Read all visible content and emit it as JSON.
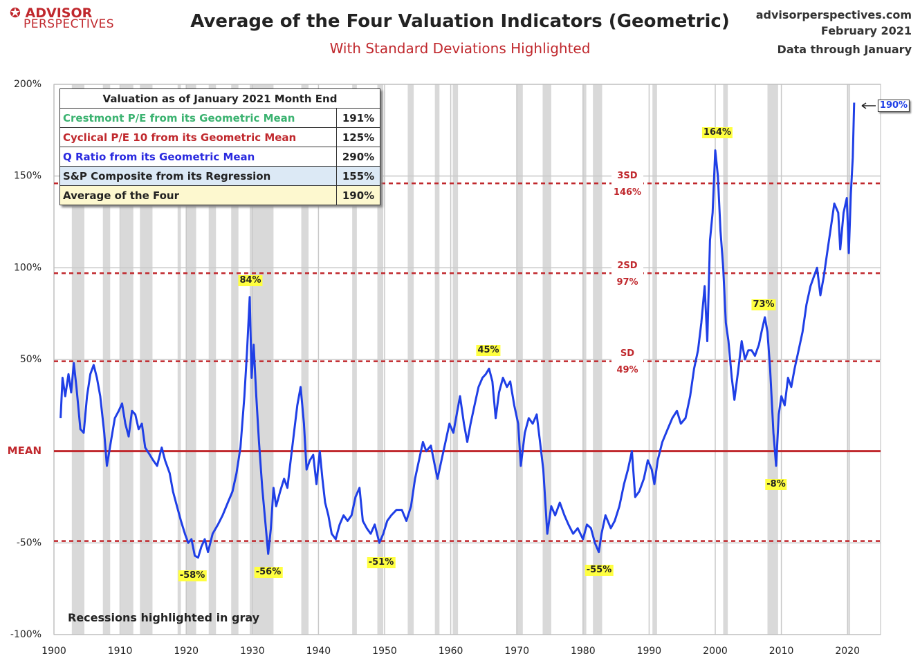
{
  "chart_data": {
    "type": "line",
    "title": "Average of the Four Valuation Indicators (Geometric)",
    "subtitle": "With Standard Deviations Highlighted",
    "logo": [
      "ADVISOR",
      "PERSPECTIVES"
    ],
    "source_lines": [
      "advisorperspectives.com",
      "February 2021",
      "Data through January"
    ],
    "note": "Recessions highlighted in gray",
    "xlim": [
      1900,
      2025
    ],
    "xticks": [
      1900,
      1910,
      1920,
      1930,
      1940,
      1950,
      1960,
      1970,
      1980,
      1990,
      2000,
      2010,
      2020
    ],
    "ylim": [
      -100,
      200
    ],
    "yticks": [
      {
        "value": -100,
        "label": "-100%"
      },
      {
        "value": -50,
        "label": "-50%"
      },
      {
        "value": 0,
        "label": "MEAN"
      },
      {
        "value": 50,
        "label": "50%"
      },
      {
        "value": 100,
        "label": "100%"
      },
      {
        "value": 150,
        "label": "150%"
      },
      {
        "value": 200,
        "label": "200%"
      }
    ],
    "grid": true,
    "mean": 0,
    "mean_color": "#c0282d",
    "reference_color": "#c0282d",
    "reference_lines": [
      {
        "value": 146,
        "label": "3SD",
        "value_label": "146%"
      },
      {
        "value": 97,
        "label": "2SD",
        "value_label": "97%"
      },
      {
        "value": 49,
        "label": "SD",
        "value_label": "49%"
      },
      {
        "value": -49
      }
    ],
    "recession_color": "#d9d9d9",
    "recessions": [
      [
        1902.7,
        1904.6
      ],
      [
        1907.4,
        1908.5
      ],
      [
        1910.1,
        1912.0
      ],
      [
        1913.0,
        1914.9
      ],
      [
        1918.7,
        1919.2
      ],
      [
        1920.0,
        1921.5
      ],
      [
        1923.4,
        1924.5
      ],
      [
        1926.8,
        1927.9
      ],
      [
        1929.6,
        1933.2
      ],
      [
        1937.4,
        1938.5
      ],
      [
        1945.1,
        1945.8
      ],
      [
        1948.9,
        1949.8
      ],
      [
        1953.5,
        1954.4
      ],
      [
        1957.6,
        1958.3
      ],
      [
        1960.3,
        1961.1
      ],
      [
        1969.9,
        1970.9
      ],
      [
        1973.9,
        1975.2
      ],
      [
        1980.0,
        1980.5
      ],
      [
        1981.5,
        1982.9
      ],
      [
        1990.5,
        1991.2
      ],
      [
        2001.2,
        2001.9
      ],
      [
        2007.9,
        2009.5
      ],
      [
        2020.1,
        2020.4
      ]
    ],
    "annotations": [
      "84%",
      "45%",
      "-58%",
      "-56%",
      "-51%",
      "-55%",
      "164%",
      "73%",
      "-8%",
      "190%"
    ],
    "x": [
      1901.0,
      1901.3,
      1901.7,
      1902.2,
      1902.6,
      1903.0,
      1903.4,
      1904.0,
      1904.5,
      1905.0,
      1905.5,
      1906.0,
      1906.5,
      1907.0,
      1907.6,
      1908.0,
      1908.6,
      1909.2,
      1909.8,
      1910.3,
      1910.8,
      1911.3,
      1911.8,
      1912.3,
      1912.8,
      1913.3,
      1913.8,
      1914.5,
      1915.0,
      1915.6,
      1916.3,
      1916.8,
      1917.5,
      1918.0,
      1918.6,
      1919.2,
      1919.8,
      1920.3,
      1920.8,
      1921.3,
      1921.8,
      1922.3,
      1922.8,
      1923.3,
      1924.0,
      1924.8,
      1925.5,
      1926.3,
      1927.0,
      1927.6,
      1928.2,
      1928.8,
      1929.2,
      1929.6,
      1929.9,
      1930.2,
      1930.6,
      1931.0,
      1931.5,
      1932.0,
      1932.4,
      1932.8,
      1933.2,
      1933.6,
      1934.2,
      1934.8,
      1935.3,
      1935.8,
      1936.3,
      1936.8,
      1937.3,
      1937.8,
      1938.2,
      1938.7,
      1939.2,
      1939.7,
      1940.2,
      1940.6,
      1941.0,
      1941.5,
      1942.0,
      1942.6,
      1943.2,
      1943.8,
      1944.4,
      1945.0,
      1945.6,
      1946.2,
      1946.7,
      1947.3,
      1947.9,
      1948.5,
      1949.2,
      1949.8,
      1950.4,
      1951.0,
      1951.8,
      1952.6,
      1953.3,
      1954.0,
      1954.6,
      1955.2,
      1955.8,
      1956.3,
      1957.0,
      1957.6,
      1958.0,
      1958.6,
      1959.2,
      1959.8,
      1960.4,
      1960.9,
      1961.4,
      1962.0,
      1962.5,
      1963.0,
      1963.6,
      1964.2,
      1964.8,
      1965.3,
      1965.8,
      1966.3,
      1966.8,
      1967.3,
      1967.9,
      1968.5,
      1969.0,
      1969.6,
      1970.2,
      1970.6,
      1971.2,
      1971.8,
      1972.4,
      1973.0,
      1973.5,
      1974.0,
      1974.6,
      1975.2,
      1975.8,
      1976.5,
      1977.2,
      1977.8,
      1978.5,
      1979.2,
      1980.0,
      1980.6,
      1981.2,
      1981.8,
      1982.4,
      1982.8,
      1983.4,
      1984.2,
      1984.8,
      1985.5,
      1986.2,
      1986.8,
      1987.4,
      1987.9,
      1988.5,
      1989.2,
      1989.8,
      1990.4,
      1990.8,
      1991.3,
      1992.0,
      1992.8,
      1993.5,
      1994.2,
      1994.8,
      1995.5,
      1996.2,
      1996.8,
      1997.4,
      1997.9,
      1998.4,
      1998.8,
      1999.2,
      1999.6,
      2000.0,
      2000.4,
      2000.8,
      2001.2,
      2001.6,
      2002.0,
      2002.5,
      2002.9,
      2003.5,
      2004.0,
      2004.5,
      2005.0,
      2005.5,
      2006.0,
      2006.6,
      2007.0,
      2007.5,
      2007.9,
      2008.3,
      2008.8,
      2009.2,
      2009.6,
      2010.0,
      2010.5,
      2011.0,
      2011.5,
      2012.0,
      2012.6,
      2013.2,
      2013.8,
      2014.4,
      2014.9,
      2015.4,
      2015.9,
      2016.4,
      2017.0,
      2017.6,
      2018.0,
      2018.6,
      2018.9,
      2019.4,
      2019.9,
      2020.2,
      2020.5,
      2020.8,
      2021.0
    ],
    "series": [
      {
        "name": "Average of the Four",
        "color": "#1f3fe6",
        "values": [
          18,
          40,
          30,
          42,
          32,
          48,
          35,
          12,
          10,
          30,
          42,
          47,
          40,
          30,
          10,
          -8,
          5,
          18,
          22,
          26,
          15,
          8,
          22,
          20,
          12,
          15,
          2,
          -2,
          -5,
          -8,
          2,
          -5,
          -12,
          -22,
          -30,
          -38,
          -45,
          -50,
          -48,
          -57,
          -58,
          -52,
          -48,
          -55,
          -45,
          -40,
          -35,
          -28,
          -22,
          -12,
          2,
          30,
          55,
          84,
          40,
          58,
          30,
          5,
          -20,
          -40,
          -56,
          -42,
          -20,
          -30,
          -22,
          -15,
          -20,
          -5,
          10,
          25,
          35,
          15,
          -10,
          -5,
          -2,
          -18,
          0,
          -15,
          -28,
          -35,
          -45,
          -48,
          -40,
          -35,
          -38,
          -35,
          -25,
          -20,
          -38,
          -42,
          -45,
          -40,
          -50,
          -45,
          -38,
          -35,
          -32,
          -32,
          -38,
          -30,
          -15,
          -5,
          5,
          0,
          3,
          -8,
          -15,
          -5,
          5,
          15,
          10,
          20,
          30,
          15,
          5,
          15,
          25,
          35,
          40,
          42,
          45,
          38,
          18,
          32,
          40,
          35,
          38,
          25,
          15,
          -8,
          10,
          18,
          15,
          20,
          5,
          -10,
          -45,
          -30,
          -35,
          -28,
          -35,
          -40,
          -45,
          -42,
          -48,
          -40,
          -42,
          -50,
          -55,
          -45,
          -35,
          -42,
          -38,
          -30,
          -18,
          -10,
          0,
          -25,
          -22,
          -15,
          -5,
          -10,
          -18,
          -5,
          5,
          12,
          18,
          22,
          15,
          18,
          30,
          45,
          55,
          70,
          90,
          60,
          115,
          130,
          164,
          150,
          120,
          100,
          70,
          60,
          40,
          28,
          45,
          60,
          50,
          55,
          55,
          52,
          58,
          65,
          73,
          65,
          45,
          10,
          -8,
          20,
          30,
          25,
          40,
          35,
          45,
          55,
          65,
          80,
          90,
          95,
          100,
          85,
          95,
          110,
          125,
          135,
          130,
          110,
          130,
          138,
          108,
          140,
          160,
          190
        ]
      }
    ],
    "table": {
      "title": "Valuation as of January 2021  Month End",
      "rows": [
        {
          "label": "Crestmont P/E from its Geometric Mean",
          "value": "191%",
          "color": "#3cb371",
          "background": "#ffffff"
        },
        {
          "label": "Cyclical P/E 10 from its Geometric Mean",
          "value": "125%",
          "color": "#c0282d",
          "background": "#ffffff"
        },
        {
          "label": "Q Ratio from its Geometric Mean",
          "value": "290%",
          "color": "#2a2adf",
          "background": "#ffffff"
        },
        {
          "label": "S&P Composite from its Regression",
          "value": "155%",
          "color": "#222222",
          "background": "#dce9f5"
        },
        {
          "label": "Average of the Four",
          "value": "190%",
          "color": "#222222",
          "background": "#fdf8cf"
        }
      ]
    }
  }
}
